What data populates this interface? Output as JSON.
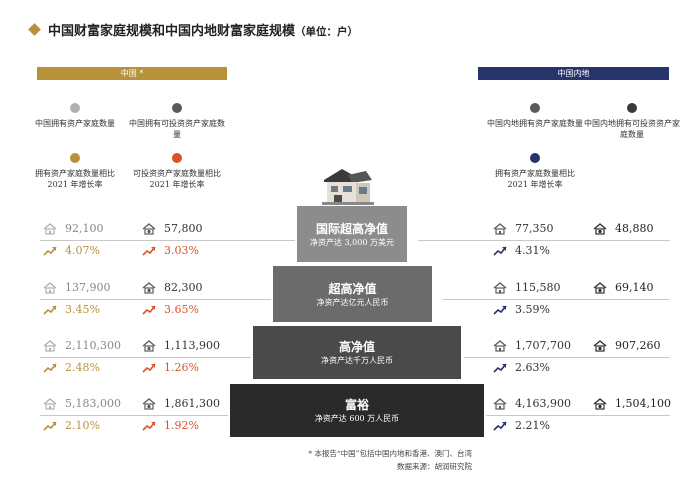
{
  "title": {
    "main": "中国财富家庭规模和中国内地财富家庭规模",
    "unit": "（单位：户）"
  },
  "china_section": {
    "header": "中国 *",
    "legend_holding": "中国拥有资产家庭数量",
    "legend_investable": "中国拥有可投资资产家庭数量",
    "legend_holding_growth": "拥有资产家庭数量相比 2021 年增长率",
    "legend_investable_growth": "可投资资产家庭数量相比 2021 年增长率"
  },
  "mainland_section": {
    "header": "中国内地",
    "legend_holding": "中国内地拥有资产家庭数量",
    "legend_investable": "中国内地拥有可投资资产家庭数量",
    "legend_holding_growth": "拥有资产家庭数量相比 2021 年增长率"
  },
  "pyramid": [
    {
      "name": "国际超高净值",
      "desc": "净资产达 3,000 万美元"
    },
    {
      "name": "超高净值",
      "desc": "净资产达亿元人民币"
    },
    {
      "name": "高净值",
      "desc": "净资产达千万人民币"
    },
    {
      "name": "富裕",
      "desc": "净资产达 600 万人民币"
    }
  ],
  "rows": [
    {
      "china_holding": "92,100",
      "china_investable": "57,800",
      "china_holding_growth": "4.07%",
      "china_investable_growth": "3.03%",
      "mainland_holding": "77,350",
      "mainland_investable": "48,880",
      "mainland_holding_growth": "4.31%"
    },
    {
      "china_holding": "137,900",
      "china_investable": "82,300",
      "china_holding_growth": "3.45%",
      "china_investable_growth": "3.65%",
      "mainland_holding": "115,580",
      "mainland_investable": "69,140",
      "mainland_holding_growth": "3.59%"
    },
    {
      "china_holding": "2,110,300",
      "china_investable": "1,113,900",
      "china_holding_growth": "2.48%",
      "china_investable_growth": "1.26%",
      "mainland_holding": "1,707,700",
      "mainland_investable": "907,260",
      "mainland_holding_growth": "2.63%"
    },
    {
      "china_holding": "5,183,000",
      "china_investable": "1,861,300",
      "china_holding_growth": "2.10%",
      "china_investable_growth": "1.92%",
      "mainland_holding": "4,163,900",
      "mainland_investable": "1,504,100",
      "mainland_holding_growth": "2.21%"
    }
  ],
  "footnote": {
    "note": "* 本报告“中国”包括中国内地和香港、澳门、台湾",
    "source": "数据来源：胡润研究院"
  },
  "colors": {
    "gold": "#b8923a",
    "navy": "#27336b",
    "red_orange": "#d9532a",
    "light_gray": "#b0b0b0",
    "dark_gray": "#5a5a5a",
    "tier1": "#8c8c8c",
    "tier2": "#6b6b6b",
    "tier3": "#4a4a4a",
    "tier4": "#2a2a2a"
  },
  "icons": {
    "holding": "house-icon",
    "investable": "house-coin-icon",
    "growth": "trend-up-arrow-icon",
    "top": "villa-icon"
  }
}
